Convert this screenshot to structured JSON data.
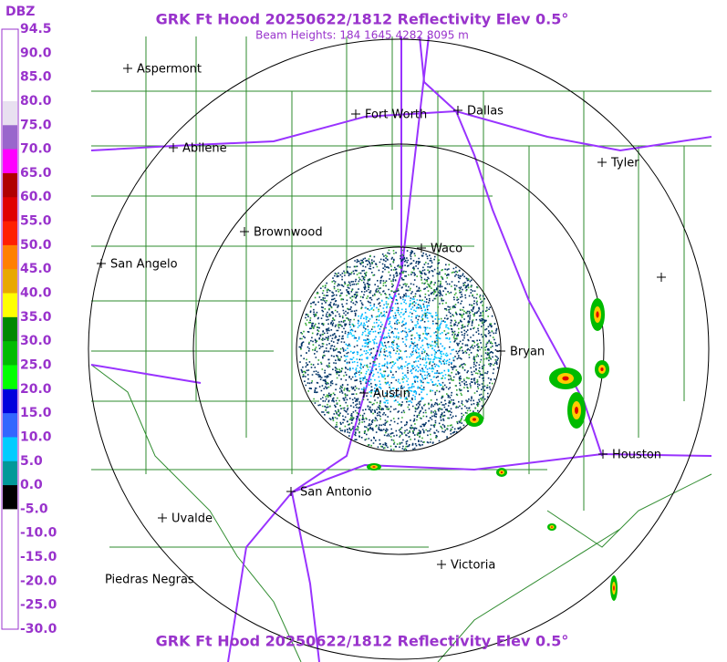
{
  "title": "GRK Ft Hood 20250622/1812 Reflectivity Elev 0.5°",
  "subtitle": "Beam Heights: 184 1645 4282 8095 m",
  "footer_title": "GRK Ft Hood 20250622/1812 Reflectivity Elev 0.5°",
  "legend": {
    "unit": "DBZ",
    "labels": [
      "94.5",
      "90.0",
      "85.0",
      "80.0",
      "75.0",
      "70.0",
      "65.0",
      "60.0",
      "55.0",
      "50.0",
      "45.0",
      "40.0",
      "35.0",
      "30.0",
      "25.0",
      "20.0",
      "15.0",
      "10.0",
      "5.0",
      "0.0",
      "-5.0",
      "-10.0",
      "-15.0",
      "-20.0",
      "-25.0",
      "-30.0"
    ]
  },
  "cities": [
    "Aspermont",
    "Fort Worth",
    "Dallas",
    "Abilene",
    "Tyler",
    "Brownwood",
    "Waco",
    "San Angelo",
    "Bryan",
    "Austin",
    "Houston",
    "San Antonio",
    "Uvalde",
    "Victoria",
    "Piedras Negras"
  ]
}
